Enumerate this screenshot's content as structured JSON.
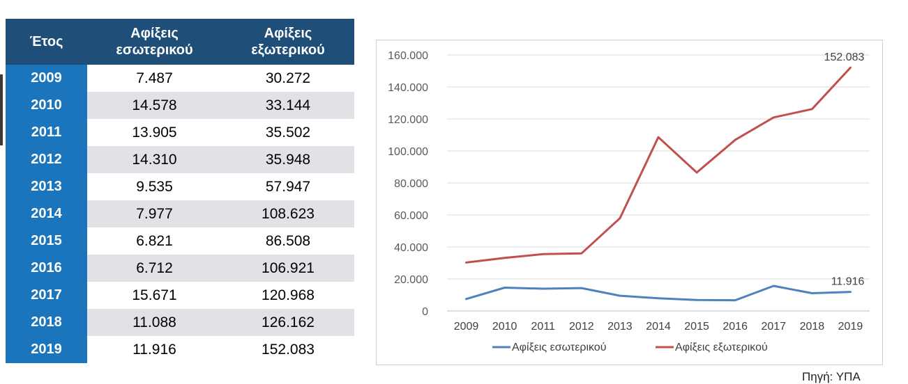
{
  "table": {
    "headers": {
      "year": "Έτος",
      "domestic": [
        "Αφίξεις",
        "εσωτερικού"
      ],
      "foreign": [
        "Αφίξεις",
        "εξωτερικού"
      ]
    },
    "rows": [
      {
        "year": "2009",
        "domestic": "7.487",
        "foreign": "30.272"
      },
      {
        "year": "2010",
        "domestic": "14.578",
        "foreign": "33.144"
      },
      {
        "year": "2011",
        "domestic": "13.905",
        "foreign": "35.502"
      },
      {
        "year": "2012",
        "domestic": "14.310",
        "foreign": "35.948"
      },
      {
        "year": "2013",
        "domestic": "9.535",
        "foreign": "57.947"
      },
      {
        "year": "2014",
        "domestic": "7.977",
        "foreign": "108.623"
      },
      {
        "year": "2015",
        "domestic": "6.821",
        "foreign": "86.508"
      },
      {
        "year": "2016",
        "domestic": "6.712",
        "foreign": "106.921"
      },
      {
        "year": "2017",
        "domestic": "15.671",
        "foreign": "120.968"
      },
      {
        "year": "2018",
        "domestic": "11.088",
        "foreign": "126.162"
      },
      {
        "year": "2019",
        "domestic": "11.916",
        "foreign": "152.083"
      }
    ]
  },
  "chart_data": {
    "type": "line",
    "x": [
      "2009",
      "2010",
      "2011",
      "2012",
      "2013",
      "2014",
      "2015",
      "2016",
      "2017",
      "2018",
      "2019"
    ],
    "series": [
      {
        "name": "Αφίξεις εσωτερικού",
        "color": "#4f81bd",
        "values": [
          7487,
          14578,
          13905,
          14310,
          9535,
          7977,
          6821,
          6712,
          15671,
          11088,
          11916
        ]
      },
      {
        "name": "Αφίξεις εξωτερικού",
        "color": "#c0504d",
        "values": [
          30272,
          33144,
          35502,
          35948,
          57947,
          108623,
          86508,
          106921,
          120968,
          126162,
          152083
        ]
      }
    ],
    "ylim": [
      0,
      160000
    ],
    "yticks": [
      0,
      20000,
      40000,
      60000,
      80000,
      100000,
      120000,
      140000,
      160000
    ],
    "ytick_labels": [
      "0",
      "20.000",
      "40.000",
      "60.000",
      "80.000",
      "100.000",
      "120.000",
      "140.000",
      "160.000"
    ],
    "data_labels": [
      {
        "series": 0,
        "index": 10,
        "text": "11.916"
      },
      {
        "series": 1,
        "index": 10,
        "text": "152.083"
      }
    ],
    "grid": true,
    "legend": "bottom",
    "title": "",
    "xlabel": "",
    "ylabel": ""
  },
  "source": "Πηγή: ΥΠΑ",
  "colors": {
    "header_bg": "#1f4e79",
    "year_bg": "#1a75bc",
    "stripe": "#e1e1e6",
    "grid": "#d9d9d9"
  }
}
